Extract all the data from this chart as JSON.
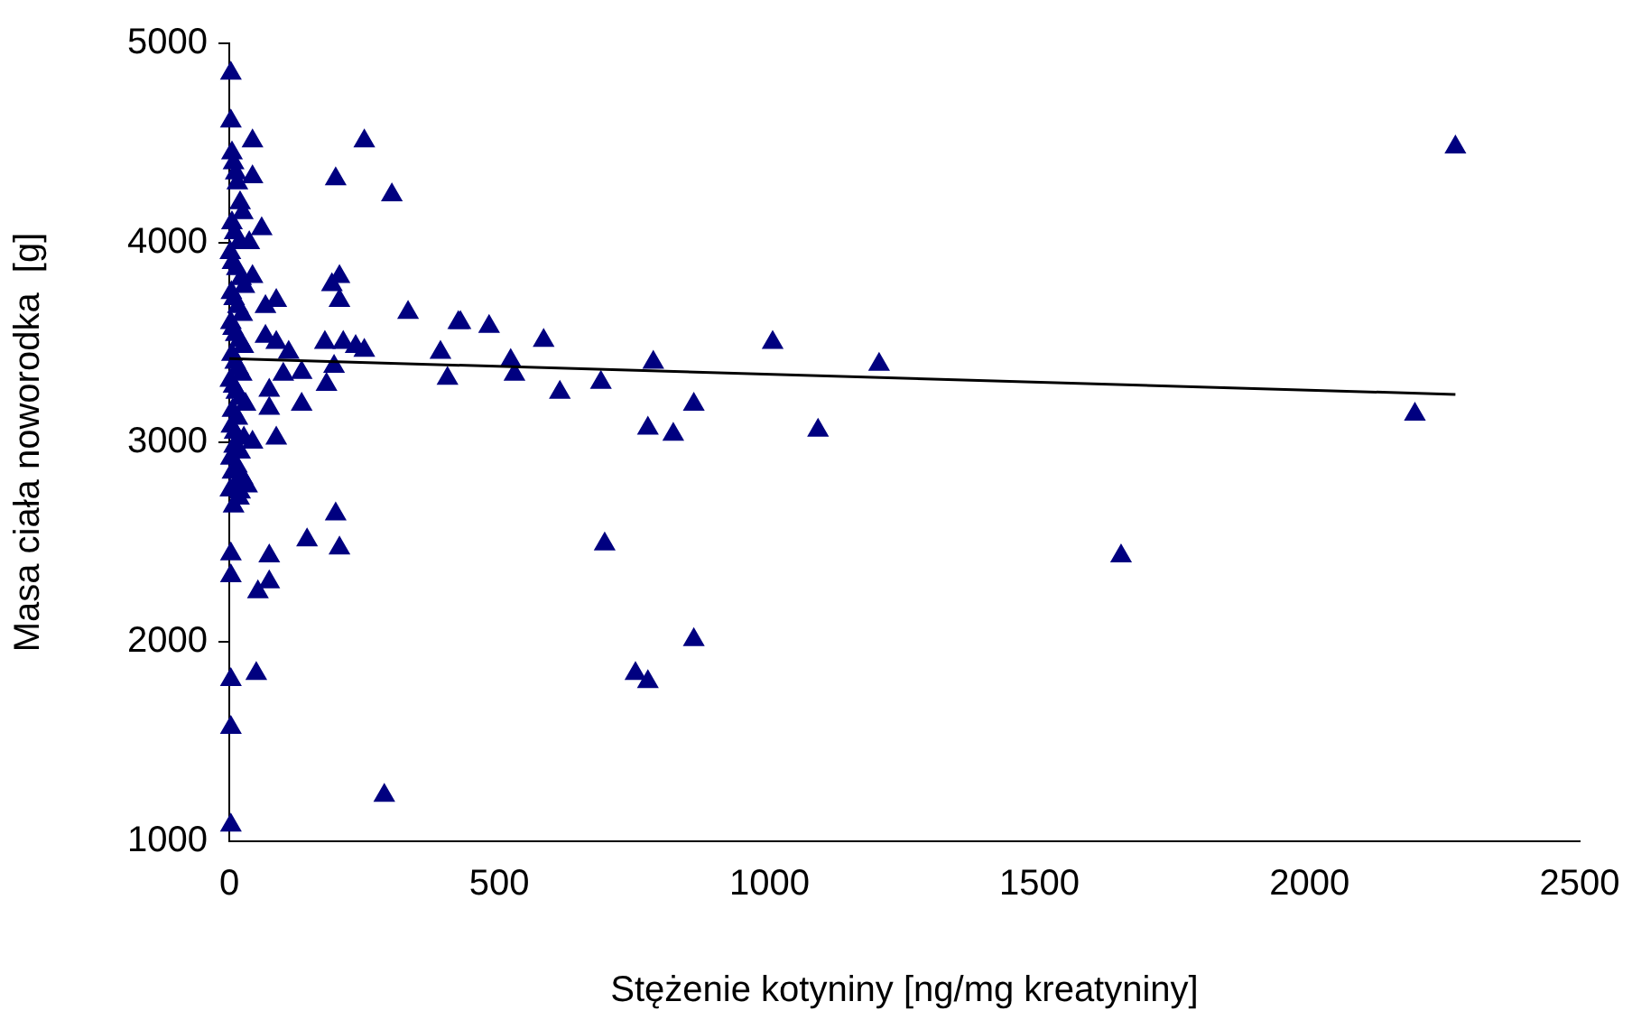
{
  "chart_data": {
    "type": "scatter",
    "xlabel": "Stężenie kotyniny [ng/mg kreatyniny]",
    "ylabel": "Masa ciała noworodka  [g]",
    "xlim": [
      0,
      2500
    ],
    "xticks": [
      0,
      500,
      1000,
      1500,
      2000,
      2500
    ],
    "ylim": [
      1000,
      5000
    ],
    "yticks": [
      1000,
      2000,
      3000,
      4000,
      5000
    ],
    "grid": false,
    "legend": false,
    "marker": "triangle",
    "series": [
      {
        "color": "#000080",
        "x": [
          3,
          3,
          43,
          250,
          43,
          197,
          301,
          60,
          37,
          204,
          190,
          87,
          204,
          331,
          424,
          67,
          43,
          67,
          87,
          177,
          211,
          234,
          250,
          110,
          391,
          404,
          100,
          134,
          194,
          180,
          134,
          74,
          74,
          87,
          3,
          3,
          74,
          74,
          53,
          144,
          197,
          204,
          3,
          50,
          3,
          287,
          3,
          33,
          20,
          43,
          2270,
          2195,
          1651,
          1006,
          1090,
          1203,
          785,
          775,
          822,
          860,
          688,
          695,
          752,
          775,
          860,
          582,
          481,
          428,
          521,
          528,
          612,
          5,
          8,
          12,
          15,
          20,
          25,
          5,
          10,
          18,
          2,
          6,
          14,
          22,
          28,
          4,
          9,
          16,
          24,
          3,
          7,
          12,
          19,
          26,
          5,
          11,
          17,
          23,
          2,
          8,
          13,
          21,
          30,
          6,
          15,
          4,
          10,
          27,
          9,
          20,
          3,
          14,
          6,
          25,
          12,
          2,
          18,
          8
        ],
        "values": [
          4850,
          4610,
          4510,
          4510,
          4330,
          4320,
          4240,
          4070,
          4000,
          3830,
          3790,
          3710,
          3710,
          3650,
          3600,
          3680,
          3830,
          3530,
          3500,
          3500,
          3500,
          3480,
          3460,
          3450,
          3450,
          3320,
          3340,
          3350,
          3380,
          3290,
          3190,
          3260,
          3170,
          3020,
          2440,
          2330,
          2430,
          2300,
          2250,
          2510,
          2640,
          2470,
          1810,
          1840,
          1570,
          1230,
          1080,
          2780,
          2750,
          3000,
          4480,
          3140,
          2430,
          3500,
          3060,
          3390,
          3400,
          3070,
          3040,
          3190,
          3300,
          2490,
          1840,
          1800,
          2010,
          3510,
          3580,
          3600,
          3410,
          3340,
          3250,
          4450,
          4400,
          4350,
          4300,
          4200,
          4150,
          4100,
          4050,
          4000,
          3950,
          3900,
          3870,
          3820,
          3780,
          3750,
          3720,
          3680,
          3640,
          3600,
          3570,
          3540,
          3510,
          3480,
          3440,
          3400,
          3370,
          3340,
          3310,
          3280,
          3250,
          3220,
          3190,
          3160,
          3120,
          3080,
          3050,
          3020,
          2980,
          2950,
          2920,
          2880,
          2850,
          2820,
          2790,
          2760,
          2720,
          2680
        ]
      },
      {
        "type": "line",
        "color": "#000000",
        "marker": "none",
        "x": [
          0,
          2270
        ],
        "values": [
          3420,
          3240
        ]
      }
    ]
  }
}
